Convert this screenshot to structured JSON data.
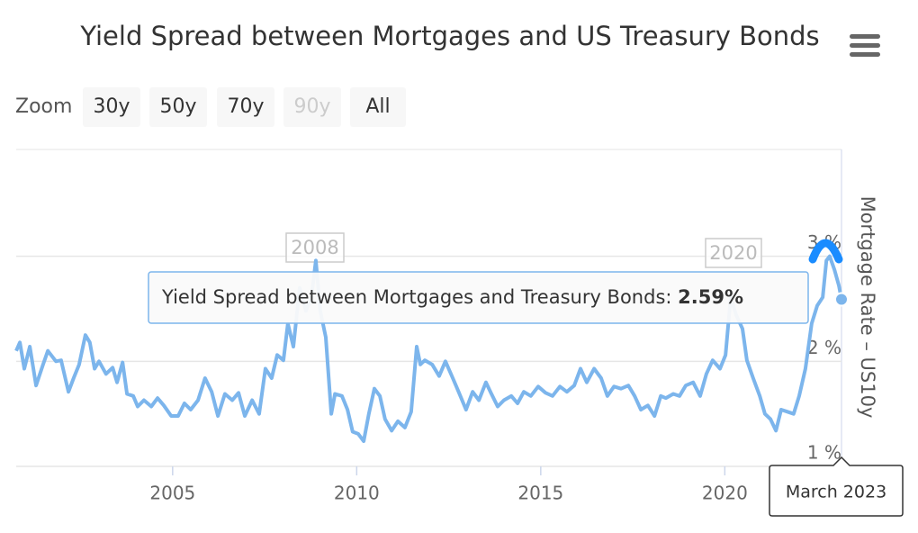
{
  "chart_data": {
    "type": "line",
    "title": "Yield Spread between Mortgages and US Treasury Bonds",
    "y_axis_title": "Mortgage Rate – US10y",
    "color": "#7cb5ec",
    "x": [
      2000.75,
      2000.85,
      2000.97,
      2001.12,
      2001.29,
      2001.48,
      2001.61,
      2001.83,
      2001.97,
      2002.17,
      2002.31,
      2002.46,
      2002.63,
      2002.75,
      2002.88,
      2003.0,
      2003.19,
      2003.37,
      2003.49,
      2003.64,
      2003.76,
      2003.93,
      2004.05,
      2004.22,
      2004.42,
      2004.59,
      2004.76,
      2004.96,
      2005.15,
      2005.32,
      2005.49,
      2005.69,
      2005.88,
      2006.06,
      2006.23,
      2006.42,
      2006.62,
      2006.79,
      2006.96,
      2007.16,
      2007.35,
      2007.52,
      2007.69,
      2007.84,
      2008.01,
      2008.13,
      2008.28,
      2008.45,
      2008.62,
      2008.77,
      2008.89,
      2009.01,
      2009.16,
      2009.31,
      2009.41,
      2009.6,
      2009.75,
      2009.89,
      2010.04,
      2010.19,
      2010.33,
      2010.48,
      2010.63,
      2010.77,
      2010.95,
      2011.12,
      2011.31,
      2011.48,
      2011.63,
      2011.73,
      2011.85,
      2012.05,
      2012.24,
      2012.41,
      2012.61,
      2012.78,
      2012.97,
      2013.15,
      2013.32,
      2013.51,
      2013.66,
      2013.83,
      2014.0,
      2014.2,
      2014.37,
      2014.54,
      2014.73,
      2014.93,
      2015.13,
      2015.32,
      2015.52,
      2015.71,
      2015.91,
      2016.08,
      2016.25,
      2016.45,
      2016.64,
      2016.81,
      2016.99,
      2017.18,
      2017.38,
      2017.55,
      2017.72,
      2017.91,
      2018.09,
      2018.26,
      2018.4,
      2018.6,
      2018.77,
      2018.94,
      2019.14,
      2019.33,
      2019.5,
      2019.67,
      2019.87,
      2020.02,
      2020.16,
      2020.31,
      2020.48,
      2020.6,
      2020.77,
      2020.95,
      2021.09,
      2021.24,
      2021.39,
      2021.53,
      2021.7,
      2021.87,
      2022.02,
      2022.19,
      2022.36,
      2022.51,
      2022.66,
      2022.76,
      2022.85,
      2022.98,
      2023.1,
      2023.17
    ],
    "values": [
      2.1,
      2.18,
      1.93,
      2.14,
      1.77,
      1.97,
      2.1,
      2.0,
      2.01,
      1.71,
      1.84,
      1.97,
      2.25,
      2.18,
      1.93,
      2.0,
      1.88,
      1.94,
      1.8,
      1.99,
      1.69,
      1.67,
      1.57,
      1.63,
      1.57,
      1.65,
      1.58,
      1.48,
      1.48,
      1.6,
      1.54,
      1.63,
      1.84,
      1.71,
      1.48,
      1.69,
      1.63,
      1.7,
      1.48,
      1.63,
      1.5,
      1.93,
      1.84,
      2.06,
      2.01,
      2.36,
      2.14,
      2.7,
      2.48,
      2.61,
      2.96,
      2.48,
      2.23,
      1.5,
      1.69,
      1.67,
      1.54,
      1.33,
      1.31,
      1.24,
      1.5,
      1.74,
      1.67,
      1.45,
      1.34,
      1.43,
      1.37,
      1.52,
      2.14,
      1.97,
      2.01,
      1.97,
      1.86,
      2.0,
      1.84,
      1.7,
      1.54,
      1.71,
      1.63,
      1.8,
      1.69,
      1.57,
      1.63,
      1.67,
      1.6,
      1.71,
      1.67,
      1.76,
      1.7,
      1.67,
      1.76,
      1.71,
      1.77,
      1.93,
      1.8,
      1.93,
      1.84,
      1.67,
      1.76,
      1.74,
      1.77,
      1.67,
      1.54,
      1.58,
      1.48,
      1.67,
      1.65,
      1.69,
      1.67,
      1.77,
      1.8,
      1.67,
      1.88,
      2.01,
      1.93,
      2.06,
      2.61,
      2.44,
      2.31,
      2.01,
      1.84,
      1.67,
      1.5,
      1.45,
      1.34,
      1.54,
      1.52,
      1.5,
      1.67,
      1.93,
      2.36,
      2.53,
      2.61,
      2.96,
      3.0,
      2.87,
      2.72,
      2.59
    ],
    "xlim": [
      2000.75,
      2023.17
    ],
    "xticks": [
      2005,
      2010,
      2015,
      2020
    ],
    "ylim": [
      1,
      4
    ],
    "yticks": [
      {
        "value": 1,
        "label": "1 %"
      },
      {
        "value": 2,
        "label": "2 %"
      },
      {
        "value": 3,
        "label": "3 %"
      }
    ],
    "grid": true,
    "annotations": [
      "2008",
      "2020"
    ],
    "tooltip": {
      "label": "Yield Spread between Mortgages and Treasury Bonds:",
      "value_label": "2.59%",
      "date": "March 2023"
    }
  },
  "range_selector": {
    "label": "Zoom",
    "buttons": [
      "30y",
      "50y",
      "70y",
      "90y",
      "All"
    ]
  }
}
